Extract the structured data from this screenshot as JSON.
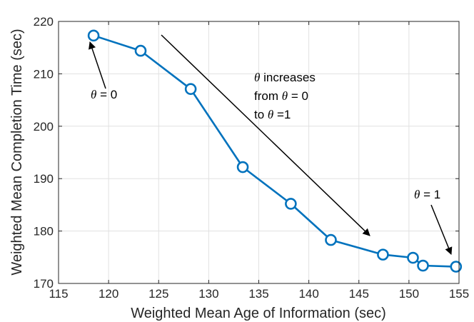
{
  "chart_data": {
    "type": "line",
    "title": "",
    "xlabel": "Weighted Mean Age of Information (sec)",
    "ylabel": "Weighted Mean Completion Time (sec)",
    "xlim": [
      115,
      155
    ],
    "ylim": [
      170,
      220
    ],
    "xticks": [
      "115",
      "120",
      "125",
      "130",
      "135",
      "140",
      "145",
      "150",
      "155"
    ],
    "yticks": [
      "170",
      "180",
      "190",
      "200",
      "210",
      "220"
    ],
    "grid": true,
    "marker": "circle",
    "color": "#0072BD",
    "series": [
      {
        "x": [
          118.5,
          123.2,
          128.2,
          133.4,
          138.2,
          142.2,
          147.4,
          150.4,
          151.4,
          154.7
        ],
        "y": [
          217.3,
          214.4,
          207.1,
          192.2,
          185.2,
          178.3,
          175.5,
          174.9,
          173.4,
          173.2
        ]
      }
    ],
    "annotations": {
      "left": {
        "symbol": "θ",
        "rest": " = 0"
      },
      "right": {
        "symbol": "θ",
        "rest": " = 1"
      },
      "middle": {
        "line1_symbol": "θ",
        "line1_rest": " increases",
        "line2_pre": "from  ",
        "line2_symbol": "θ",
        "line2_rest": " = 0",
        "line3_pre": "to  ",
        "line3_symbol": "θ",
        "line3_rest": " =1"
      }
    }
  }
}
